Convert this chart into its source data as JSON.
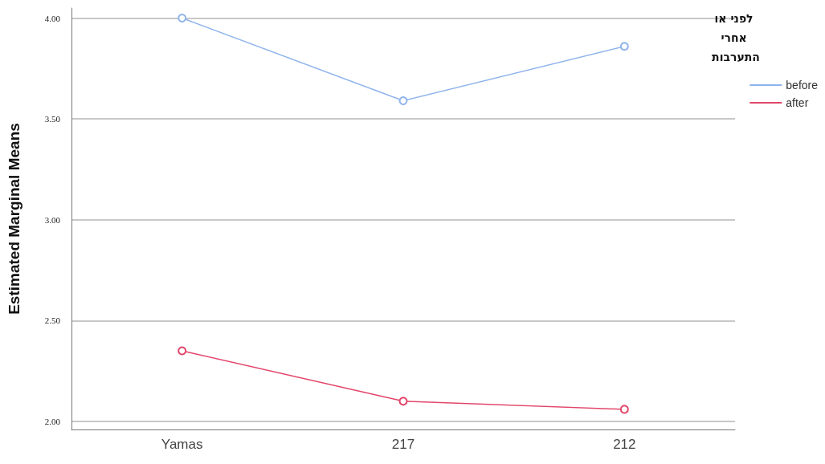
{
  "chart_data": {
    "type": "line",
    "ylabel": "Estimated Marginal Means",
    "legend_title": "לפני או אחרי התערבות",
    "categories": [
      "Yamas",
      "217",
      "212"
    ],
    "series": [
      {
        "name": "before",
        "color": "#8fb4ec",
        "values": [
          4.0,
          3.59,
          3.86
        ]
      },
      {
        "name": "after",
        "color": "#e2456a",
        "values": [
          2.35,
          2.1,
          2.06
        ]
      }
    ],
    "ylim": [
      1.96,
      4.05
    ],
    "yticks": [
      {
        "value": 2.0,
        "label": "2.00"
      },
      {
        "value": 2.5,
        "label": "2.50"
      },
      {
        "value": 3.0,
        "label": "3.00"
      },
      {
        "value": 3.5,
        "label": "3.50"
      },
      {
        "value": 4.0,
        "label": "4.00"
      }
    ],
    "grid": "y",
    "legend": "top right",
    "marker": "circle",
    "line_style": "solid"
  }
}
